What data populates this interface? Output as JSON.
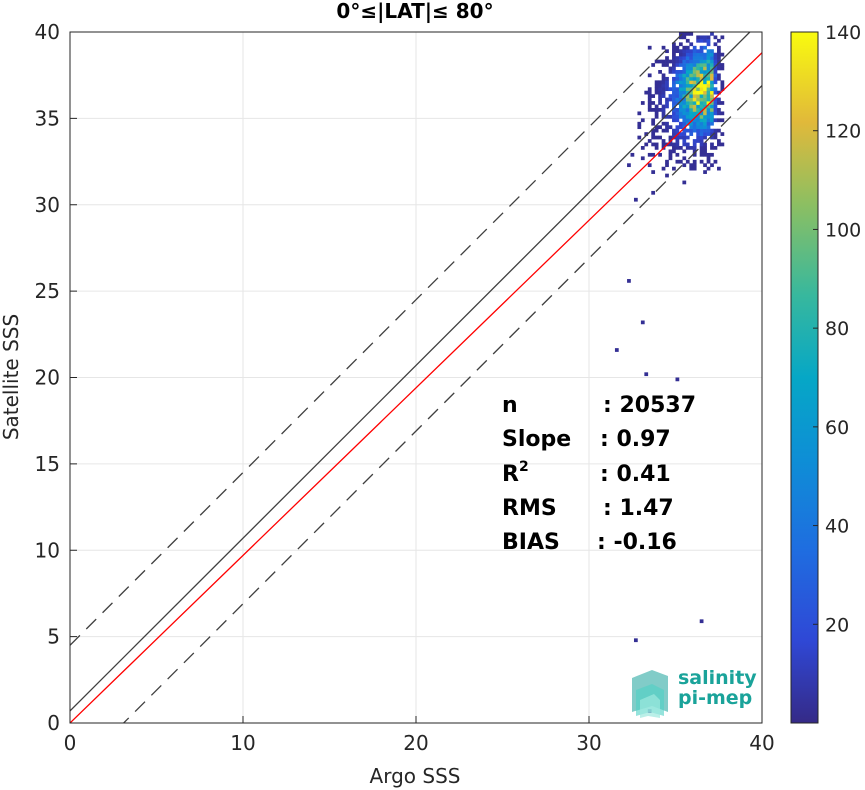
{
  "chart_data": {
    "type": "heatmap",
    "title": "0°≤|LAT|≤ 80°",
    "xlabel": "Argo SSS",
    "ylabel": "Satellite SSS",
    "xlim": [
      0,
      40
    ],
    "ylim": [
      0,
      40
    ],
    "xticks": [
      "0",
      "10",
      "20",
      "30",
      "40"
    ],
    "yticks": [
      "0",
      "5",
      "10",
      "15",
      "20",
      "25",
      "30",
      "35",
      "40"
    ],
    "grid": true,
    "colorbar": {
      "range": [
        0,
        140
      ],
      "ticks": [
        "20",
        "40",
        "60",
        "80",
        "100",
        "120",
        "140"
      ],
      "colormap": "parula"
    },
    "lines": [
      {
        "name": "one-to-one",
        "color": "#404040",
        "style": "solid",
        "slope": 1,
        "intercept": 0.7
      },
      {
        "name": "regression",
        "color": "#ff0000",
        "style": "solid",
        "slope": 0.97,
        "intercept": 0.0
      },
      {
        "name": "upper-bound",
        "color": "#404040",
        "style": "dashed",
        "slope": 1,
        "intercept": 4.5
      },
      {
        "name": "lower-bound",
        "color": "#404040",
        "style": "dashed",
        "slope": 1,
        "intercept": -3.1
      }
    ],
    "density_peak": {
      "x": 36.5,
      "y": 36.5,
      "max_count": 140
    },
    "stats": [
      {
        "label": "n",
        "value": ": 20537"
      },
      {
        "label": "Slope",
        "value": ": 0.97"
      },
      {
        "label": "R",
        "sup": "2",
        "value": ": 0.41"
      },
      {
        "label": "RMS",
        "value": ": 1.47"
      },
      {
        "label": "BIAS",
        "value": ": -0.16"
      }
    ]
  },
  "logo": {
    "line1": "salinity",
    "line2": "pi-mep",
    "color": "#1aa39a"
  }
}
